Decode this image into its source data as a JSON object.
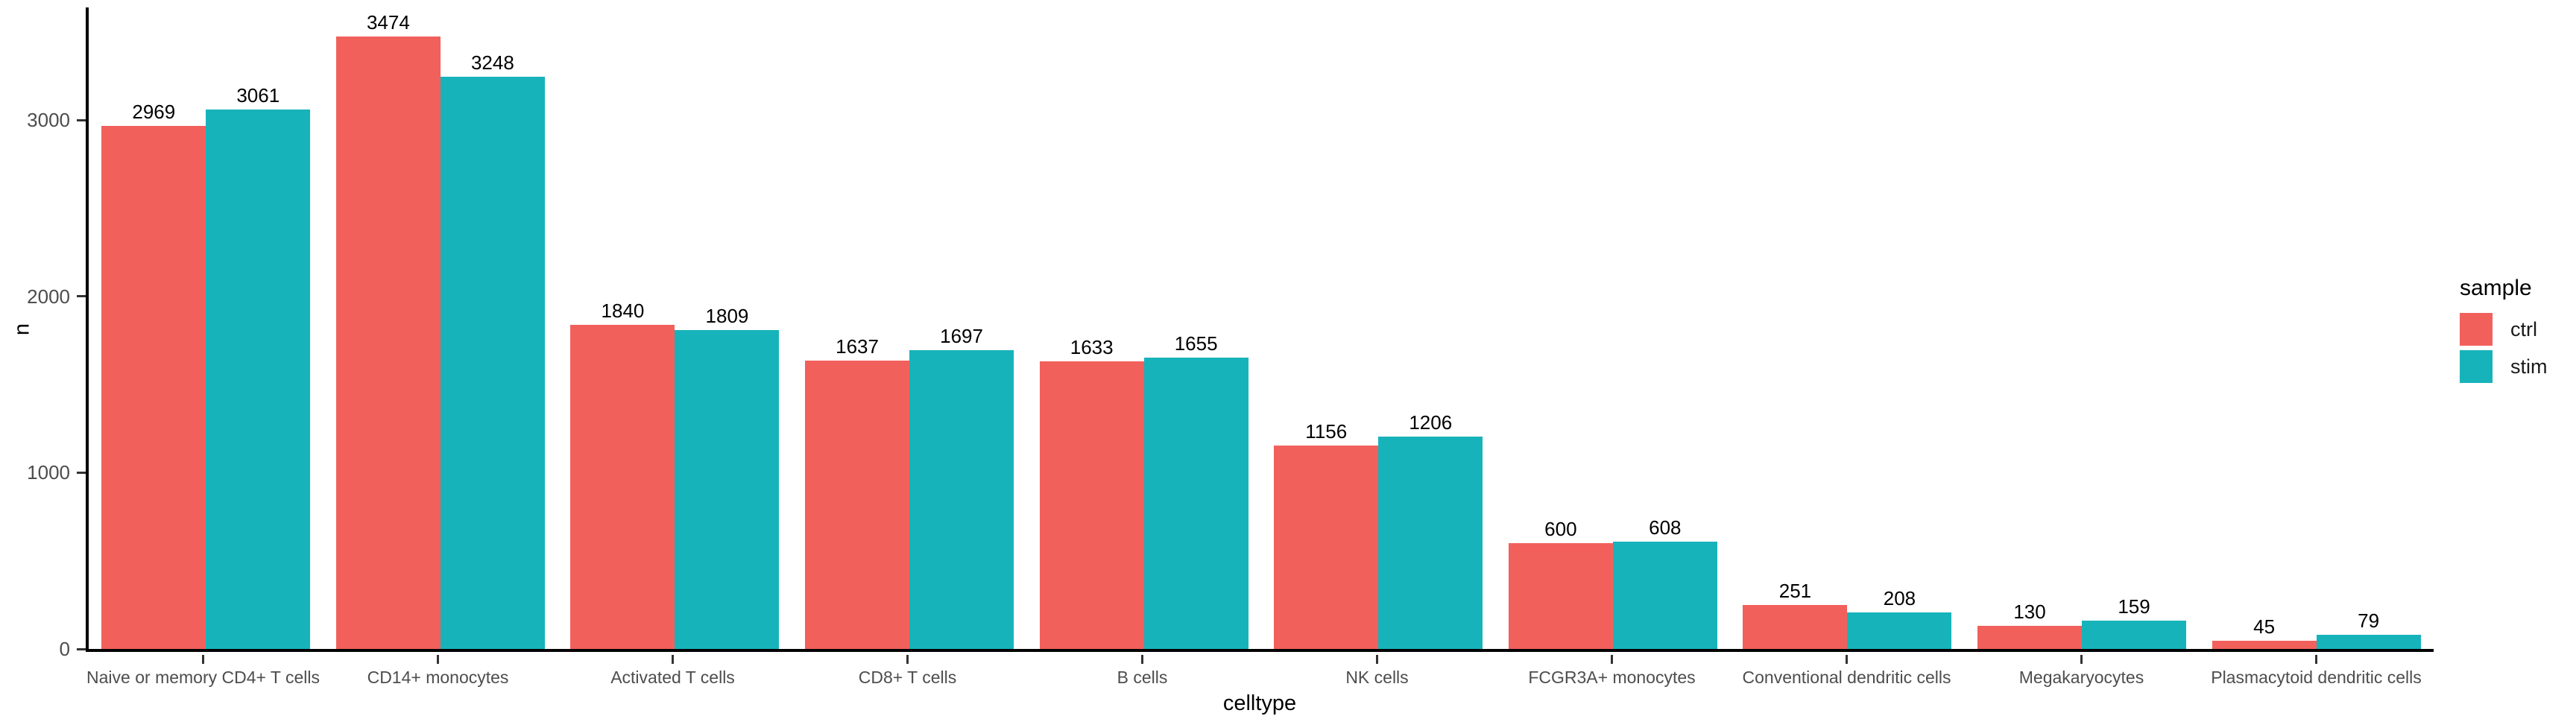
{
  "chart_data": {
    "type": "bar",
    "title": "",
    "xlabel": "celltype",
    "ylabel": "n",
    "ylim": [
      0,
      3640
    ],
    "ytick_values": [
      0,
      1000,
      2000,
      3000
    ],
    "ytick_labels": [
      "0",
      "1000",
      "2000",
      "3000"
    ],
    "grid": false,
    "bar_value_labels": true,
    "categories": [
      "Naive or memory CD4+ T cells",
      "CD14+ monocytes",
      "Activated T cells",
      "CD8+ T cells",
      "B cells",
      "NK cells",
      "FCGR3A+ monocytes",
      "Conventional dendritic cells",
      "Megakaryocytes",
      "Plasmacytoid dendritic cells"
    ],
    "series": [
      {
        "name": "ctrl",
        "color": "#F2605C",
        "values": [
          2969,
          3474,
          1840,
          1637,
          1633,
          1156,
          600,
          251,
          130,
          45
        ]
      },
      {
        "name": "stim",
        "color": "#17B3BA",
        "values": [
          3061,
          3248,
          1809,
          1697,
          1655,
          1206,
          608,
          208,
          159,
          79
        ]
      }
    ],
    "legend": {
      "title": "sample",
      "position": "right",
      "entries": [
        "ctrl",
        "stim"
      ]
    }
  },
  "colors": {
    "ctrl": "#F2605C",
    "stim": "#17B3BA",
    "axis_line": "#000000",
    "tick_label": "#4D4D4D",
    "value_label": "#000000",
    "background": "#FFFFFF"
  }
}
